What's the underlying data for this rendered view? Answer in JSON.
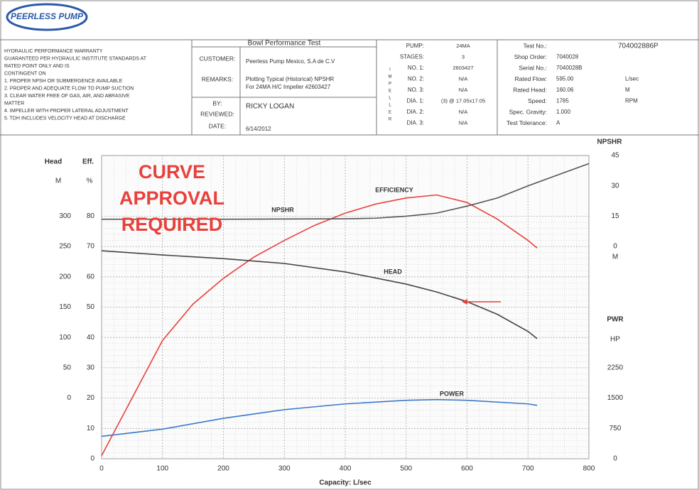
{
  "header": {
    "logo": "PEERLESS PUMP",
    "warranty": [
      "HYDRAULIC PERFORMANCE WARRANTY",
      "GUARANTEED PER HYDRAULIC INSTITUTE STANDARDS AT",
      "RATED POINT ONLY AND IS",
      "CONTINGENT ON",
      "1. PROPER NPSH OR SUBMERGENCE AVAILABLE",
      "2. PROPER AND ADEQUATE FLOW TO PUMP SUCTION",
      "3. CLEAR WATER FREE OF GAS, AIR, AND ABRASIVE",
      "MATTER",
      "4. IMPELLER WITH PROPER LATERAL ADJUSTMENT",
      "5. TDH INCLUDES VELOCITY HEAD AT DISCHARGE"
    ],
    "test": {
      "title": "Bowl Performance Test",
      "rows": [
        [
          "CUSTOMER:",
          "Peerless Pump Mexico, S.A de C.V"
        ],
        [
          "REMARKS:",
          "Plotting Typical (Historical) NPSHR",
          "For 24MA H/C Impeller #2603427"
        ],
        [
          "BY:",
          "RICKY LOGAN"
        ],
        [
          "REVIEWED:"
        ],
        [
          "DATE:",
          "6/14/2012"
        ]
      ]
    },
    "pump": {
      "side": "IMPELLER",
      "rows": [
        [
          "PUMP:",
          "24MA"
        ],
        [
          "STAGES:",
          "3"
        ],
        [
          "NO. 1:",
          "2603427"
        ],
        [
          "NO. 2:",
          "N/A"
        ],
        [
          "NO. 3:",
          "N/A"
        ],
        [
          "DIA. 1:",
          "(3) @ 17.05x17.05"
        ],
        [
          "DIA. 2:",
          "N/A"
        ],
        [
          "DIA. 3:",
          "N/A"
        ]
      ]
    },
    "info": {
      "rows": [
        [
          "Test No.:",
          "704002886P"
        ],
        [
          "Shop Order:",
          "7040028"
        ],
        [
          "Serial No.:",
          "7040028B"
        ],
        [
          "Rated Flow:",
          "595.00",
          "L/sec"
        ],
        [
          "Rated Head:",
          "160.06",
          "M"
        ],
        [
          "Speed:",
          "1785",
          "RPM"
        ],
        [
          "Spec. Gravity:",
          "1.000"
        ],
        [
          "Test Tolerance:",
          "A"
        ]
      ]
    }
  },
  "chart_data": {
    "type": "line",
    "xlabel": "Capacity: L/sec",
    "xlim": [
      0,
      800
    ],
    "xticks": [
      0,
      100,
      200,
      300,
      400,
      500,
      600,
      700,
      800
    ],
    "grid": true,
    "annotation": [
      "CURVE",
      "APPROVAL",
      "REQUIRED"
    ],
    "axes": [
      {
        "title": "Head",
        "unit": "M",
        "lim": [
          -100,
          400
        ],
        "ticks": [
          0,
          50,
          100,
          150,
          200,
          250,
          300
        ]
      },
      {
        "title": "Eff.",
        "unit": "%",
        "lim": [
          0,
          100
        ],
        "ticks": [
          0,
          10,
          20,
          30,
          40,
          50,
          60,
          70,
          80
        ]
      },
      {
        "title": "NPSHR",
        "unit": "M",
        "lim": [
          -105,
          45
        ],
        "ticks": [
          0,
          15,
          30,
          45
        ]
      },
      {
        "title": "PWR",
        "unit": "HP",
        "lim": [
          0,
          7500
        ],
        "ticks": [
          0,
          750,
          1500,
          2250
        ]
      }
    ],
    "series": [
      {
        "name": "EFFICIENCY",
        "color": "#e8413c",
        "axis": 1,
        "x": [
          0,
          50,
          100,
          150,
          200,
          250,
          300,
          350,
          400,
          450,
          500,
          550,
          600,
          650,
          700,
          715
        ],
        "values": [
          1,
          20,
          39,
          51,
          59.5,
          66.5,
          72,
          77,
          81,
          84,
          86,
          87,
          84.5,
          79,
          72,
          69.5
        ]
      },
      {
        "name": "NPSHR",
        "color": "#555555",
        "axis": 2,
        "x": [
          0,
          200,
          400,
          450,
          500,
          550,
          600,
          650,
          700,
          750,
          800
        ],
        "values": [
          13.5,
          13.5,
          13.7,
          14,
          15,
          16.5,
          20,
          24,
          30,
          35.5,
          41
        ]
      },
      {
        "name": "HEAD",
        "color": "#444444",
        "axis": 0,
        "x": [
          0,
          100,
          200,
          300,
          400,
          500,
          550,
          600,
          650,
          700,
          715
        ],
        "values": [
          243,
          236,
          230,
          222,
          208,
          188,
          175,
          159,
          138,
          110,
          98
        ]
      },
      {
        "name": "POWER",
        "color": "#3a78c9",
        "axis": 3,
        "x": [
          0,
          100,
          200,
          300,
          400,
          500,
          550,
          600,
          700,
          715
        ],
        "values": [
          554,
          732,
          1000,
          1214,
          1357,
          1446,
          1464,
          1446,
          1357,
          1321
        ]
      }
    ]
  }
}
